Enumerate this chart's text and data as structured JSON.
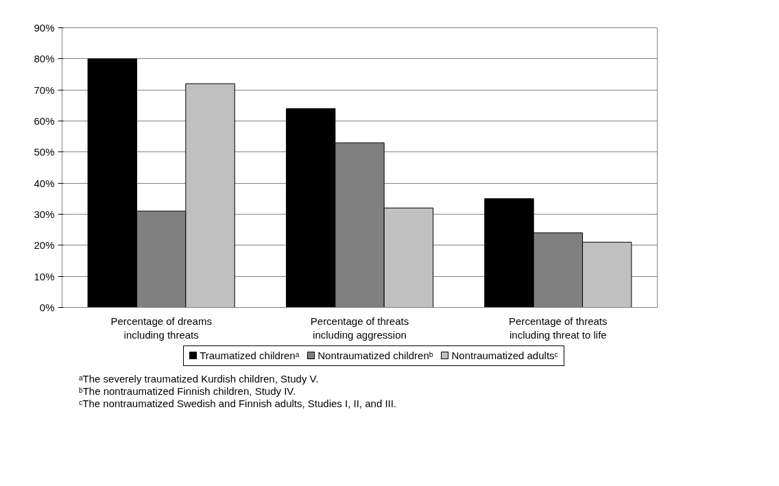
{
  "chart_data": {
    "type": "bar",
    "categories": [
      "Percentage of dreams including threats",
      "Percentage of threats including aggression",
      "Percentage of threats including threat to life"
    ],
    "series": [
      {
        "name": "Traumatized childrenᵃ",
        "color": "#000000",
        "values": [
          80,
          64,
          35
        ]
      },
      {
        "name": "Nontraumatized childrenᵇ",
        "color": "#808080",
        "values": [
          31,
          53,
          24
        ]
      },
      {
        "name": "Nontraumatized adultsᶜ",
        "color": "#c0c0c0",
        "values": [
          72,
          32,
          21
        ]
      }
    ],
    "ylim": [
      0,
      90
    ],
    "yticks": [
      {
        "value": 0,
        "label": "0%"
      },
      {
        "value": 10,
        "label": "10%"
      },
      {
        "value": 20,
        "label": "20%"
      },
      {
        "value": 30,
        "label": "30%"
      },
      {
        "value": 40,
        "label": "40%"
      },
      {
        "value": 50,
        "label": "50%"
      },
      {
        "value": 60,
        "label": "60%"
      },
      {
        "value": 70,
        "label": "70%"
      },
      {
        "value": 80,
        "label": "80%"
      },
      {
        "value": 90,
        "label": "90%"
      }
    ],
    "grid": "y",
    "legend": "bottom",
    "annotations": [
      "ᵃThe severely traumatized Kurdish children, Study V.",
      "ᵇThe nontraumatized Finnish children, Study IV.",
      "ᶜThe nontraumatized Swedish and Finnish adults, Studies I, II, and III."
    ]
  }
}
